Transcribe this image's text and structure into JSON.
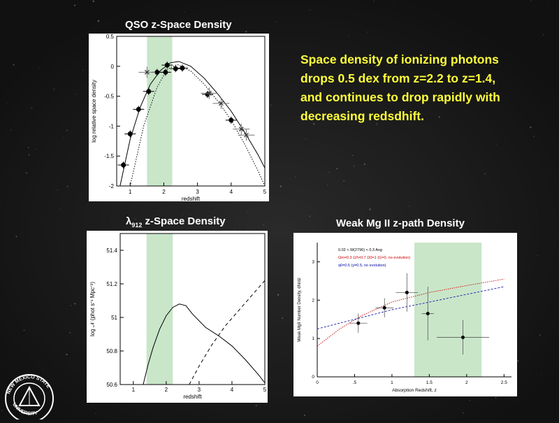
{
  "slide": {
    "background_color": "#141414",
    "headline_color": "#ffff3a",
    "shade_color": "#c9e6c9",
    "headline_lines": [
      "Space density of ionizing photons",
      "drops 0.5 dex from z=2.2 to z=1.4,",
      "and continues to drop rapidly with",
      "decreasing redsdhift."
    ],
    "seal_icon": "nmsu-seal-icon",
    "seal_text": "NEW MEXICO STATE UNIVERSITY"
  },
  "chart_data": [
    {
      "type": "scatter",
      "title": "QSO z-Space Density",
      "xlabel": "redshift",
      "ylabel": "log relative space density",
      "xlim": [
        0.6,
        5
      ],
      "ylim": [
        -2,
        0.5
      ],
      "xticks": [
        "1",
        "2",
        "3",
        "4",
        "5"
      ],
      "yticks": [
        "0.5",
        "0",
        "-0.5",
        "-1",
        "-1.5",
        "-2"
      ],
      "shaded_band": [
        1.5,
        2.25
      ],
      "series": [
        {
          "style": "filled-circle",
          "x": [
            0.8,
            1.0,
            1.25,
            1.55,
            1.8,
            2.05,
            2.1,
            2.35,
            2.55,
            3.3,
            4.0
          ],
          "y": [
            -1.65,
            -1.13,
            -0.72,
            -0.42,
            -0.1,
            -0.1,
            0.02,
            -0.04,
            -0.03,
            -0.47,
            -0.9
          ]
        },
        {
          "style": "open-cross",
          "x": [
            1.5,
            3.35,
            3.7,
            4.3,
            4.45
          ],
          "y": [
            -0.1,
            -0.45,
            -0.62,
            -1.05,
            -1.15
          ]
        },
        {
          "style": "solid-curve",
          "x": [
            0.7,
            1.0,
            1.3,
            1.6,
            1.9,
            2.2,
            2.45,
            2.8,
            3.2,
            3.6,
            4.0,
            4.4,
            4.8,
            5.0
          ],
          "y": [
            -2.0,
            -1.22,
            -0.68,
            -0.3,
            -0.07,
            0.06,
            0.08,
            0.0,
            -0.2,
            -0.46,
            -0.75,
            -1.1,
            -1.48,
            -1.7
          ]
        },
        {
          "style": "dotted-curve",
          "x": [
            1.0,
            1.4,
            1.8,
            2.1,
            2.4,
            2.8,
            3.2,
            3.6,
            4.0,
            4.4,
            4.8,
            5.0
          ],
          "y": [
            -2.0,
            -1.0,
            -0.35,
            -0.05,
            0.03,
            -0.08,
            -0.3,
            -0.58,
            -0.9,
            -1.3,
            -1.75,
            -2.0
          ]
        }
      ]
    },
    {
      "type": "line",
      "title_main": "λ",
      "title_sub": "912",
      "title_rest": " z-Space Density",
      "xlabel": "redshift",
      "ylabel": "log 𝒩 (phot s⁻¹ Mpc⁻³)",
      "xlim": [
        0.6,
        5
      ],
      "ylim": [
        50.6,
        51.5
      ],
      "xticks": [
        "1",
        "2",
        "3",
        "4",
        "5"
      ],
      "yticks": [
        "51.4",
        "51.2",
        "51",
        "50.8",
        "50.6"
      ],
      "shaded_band": [
        1.4,
        2.2
      ],
      "series": [
        {
          "style": "solid",
          "x": [
            1.3,
            1.45,
            1.6,
            1.8,
            2.0,
            2.2,
            2.4,
            2.6,
            2.8,
            3.2,
            3.6,
            4.0,
            4.4,
            4.8,
            5.0
          ],
          "y": [
            50.6,
            50.72,
            50.82,
            50.93,
            51.01,
            51.06,
            51.08,
            51.07,
            51.02,
            50.94,
            50.89,
            50.83,
            50.75,
            50.66,
            50.61
          ]
        },
        {
          "style": "dashed",
          "x": [
            2.7,
            3.0,
            3.4,
            3.8,
            4.2,
            4.6,
            5.0
          ],
          "y": [
            50.6,
            50.71,
            50.84,
            50.95,
            51.04,
            51.13,
            51.22
          ]
        }
      ]
    },
    {
      "type": "scatter",
      "title": "Weak Mg II z-path Density",
      "xlabel": "Absorption Redshift, z",
      "ylabel": "Weak MgII Number Density, dN/dz",
      "xlim": [
        0,
        2.6
      ],
      "ylim": [
        0,
        3.5
      ],
      "xticks": [
        "0",
        ".5",
        "1",
        "1.5",
        "2",
        "2.5"
      ],
      "yticks": [
        "0",
        "1",
        "2",
        "3"
      ],
      "shaded_band": [
        1.3,
        2.2
      ],
      "legend": [
        {
          "text": "0.02 < W(2796) < 0.3 Ang",
          "color": "#000000"
        },
        {
          "text": "Ωm=0.3 ΩΛ=0.7 Ω0=1 (G=0, no evolution)",
          "color": "#cc0000"
        },
        {
          "text": "q0=0.5 (y=0.5, no evolution)",
          "color": "#0000aa"
        }
      ],
      "points": {
        "x": [
          0.55,
          0.9,
          1.2,
          1.48,
          1.95
        ],
        "y": [
          1.4,
          1.8,
          2.2,
          1.65,
          1.03
        ],
        "xerr": [
          0.12,
          0.12,
          0.15,
          0.08,
          0.35
        ],
        "yerr": [
          0.25,
          0.25,
          0.5,
          0.7,
          0.45
        ]
      },
      "series": [
        {
          "name_style": "red-dotted",
          "x": [
            0,
            0.3,
            0.6,
            1.0,
            1.5,
            2.0,
            2.5
          ],
          "y": [
            0.8,
            1.25,
            1.6,
            1.95,
            2.2,
            2.38,
            2.55
          ]
        },
        {
          "name_style": "blue-dashed",
          "x": [
            0,
            0.5,
            1.0,
            1.5,
            2.0,
            2.5
          ],
          "y": [
            1.25,
            1.5,
            1.75,
            1.95,
            2.15,
            2.35
          ]
        }
      ]
    }
  ]
}
